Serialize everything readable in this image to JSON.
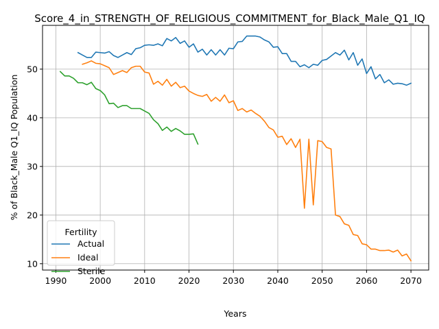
{
  "chart_data": {
    "type": "line",
    "title": "Score_4_in_STRENGTH_OF_RELIGIOUS_COMMITMENT_for_Black_Male_Q1_IQ",
    "xlabel": "Years",
    "ylabel": "% of Black_Male Q1_IQ Population",
    "xlim": [
      1987,
      2074
    ],
    "ylim": [
      8.7,
      59.0
    ],
    "xticks": [
      1990,
      2000,
      2010,
      2020,
      2030,
      2040,
      2050,
      2060,
      2070
    ],
    "yticks": [
      10,
      20,
      30,
      40,
      50
    ],
    "grid": true,
    "legend": {
      "title": "Fertility",
      "placement": "lower-left"
    },
    "series": [
      {
        "name": "Actual",
        "color": "#1f77b4",
        "x": [
          1995,
          1996,
          1997,
          1998,
          1999,
          2000,
          2001,
          2002,
          2003,
          2004,
          2005,
          2006,
          2007,
          2008,
          2009,
          2010,
          2011,
          2012,
          2013,
          2014,
          2015,
          2016,
          2017,
          2018,
          2019,
          2020,
          2021,
          2022,
          2023,
          2024,
          2025,
          2026,
          2027,
          2028,
          2029,
          2030,
          2031,
          2032,
          2033,
          2034,
          2035,
          2036,
          2037,
          2038,
          2039,
          2040,
          2041,
          2042,
          2043,
          2044,
          2045,
          2046,
          2047,
          2048,
          2049,
          2050,
          2051,
          2052,
          2053,
          2054,
          2055,
          2056,
          2057,
          2058,
          2059,
          2060,
          2061,
          2062,
          2063,
          2064,
          2065,
          2066,
          2067,
          2068,
          2069,
          2070
        ],
        "values": [
          53.4,
          52.9,
          52.4,
          52.4,
          53.5,
          53.4,
          53.3,
          53.6,
          52.8,
          52.4,
          52.9,
          53.4,
          53.0,
          54.2,
          54.4,
          54.9,
          55.0,
          54.9,
          55.2,
          54.8,
          56.3,
          55.8,
          56.5,
          55.3,
          55.8,
          54.5,
          55.2,
          53.5,
          54.1,
          52.9,
          54.0,
          52.9,
          54.0,
          52.9,
          54.3,
          54.2,
          55.6,
          55.7,
          56.8,
          56.8,
          56.8,
          56.6,
          56.0,
          55.6,
          54.5,
          54.6,
          53.2,
          53.2,
          51.6,
          51.6,
          50.5,
          50.9,
          50.3,
          51.0,
          50.8,
          51.8,
          52.0,
          52.7,
          53.4,
          52.9,
          53.9,
          51.9,
          53.4,
          50.8,
          52.1,
          49.1,
          50.5,
          48.0,
          48.9,
          47.2,
          47.8,
          46.9,
          47.1,
          47.0,
          46.7,
          47.1
        ]
      },
      {
        "name": "Ideal",
        "color": "#ff7f0e",
        "x": [
          1996,
          1997,
          1998,
          1999,
          2000,
          2001,
          2002,
          2003,
          2004,
          2005,
          2006,
          2007,
          2008,
          2009,
          2010,
          2011,
          2012,
          2013,
          2014,
          2015,
          2016,
          2017,
          2018,
          2019,
          2020,
          2021,
          2022,
          2023,
          2024,
          2025,
          2026,
          2027,
          2028,
          2029,
          2030,
          2031,
          2032,
          2033,
          2034,
          2035,
          2036,
          2037,
          2038,
          2039,
          2040,
          2041,
          2042,
          2043,
          2044,
          2045,
          2046,
          2047,
          2048,
          2049,
          2050,
          2051,
          2052,
          2053,
          2054,
          2055,
          2056,
          2057,
          2058,
          2059,
          2060,
          2061,
          2062,
          2063,
          2064,
          2065,
          2066,
          2067,
          2068,
          2069,
          2070
        ],
        "values": [
          51.0,
          51.3,
          51.7,
          51.2,
          51.1,
          50.7,
          50.3,
          48.9,
          49.3,
          49.7,
          49.3,
          50.3,
          50.6,
          50.6,
          49.4,
          49.2,
          46.9,
          47.5,
          46.7,
          47.9,
          46.5,
          47.3,
          46.2,
          46.5,
          45.5,
          45.0,
          44.6,
          44.4,
          44.8,
          43.4,
          44.2,
          43.4,
          44.7,
          43.1,
          43.5,
          41.5,
          41.9,
          41.2,
          41.6,
          40.9,
          40.3,
          39.3,
          38.0,
          37.5,
          36.0,
          36.2,
          34.5,
          35.7,
          33.9,
          35.6,
          21.4,
          35.6,
          22.1,
          35.3,
          35.1,
          33.9,
          33.6,
          20.0,
          19.7,
          18.2,
          17.9,
          16.0,
          15.8,
          14.1,
          13.9,
          13.0,
          13.0,
          12.7,
          12.7,
          12.8,
          12.4,
          12.8,
          11.6,
          12.0,
          10.6
        ]
      },
      {
        "name": "Sterile",
        "color": "#2ca02c",
        "x": [
          1991,
          1992,
          1993,
          1994,
          1995,
          1996,
          1997,
          1998,
          1999,
          2000,
          2001,
          2002,
          2003,
          2004,
          2005,
          2006,
          2007,
          2008,
          2009,
          2010,
          2011,
          2012,
          2013,
          2014,
          2015,
          2016,
          2017,
          2018,
          2019,
          2020,
          2021,
          2022
        ],
        "values": [
          49.5,
          48.6,
          48.6,
          48.1,
          47.2,
          47.2,
          46.8,
          47.3,
          46.0,
          45.6,
          44.7,
          42.9,
          43.0,
          42.1,
          42.5,
          42.5,
          41.9,
          41.9,
          41.9,
          41.4,
          40.9,
          39.6,
          38.8,
          37.4,
          38.1,
          37.2,
          37.8,
          37.3,
          36.6,
          36.6,
          36.7,
          34.6
        ]
      }
    ]
  }
}
